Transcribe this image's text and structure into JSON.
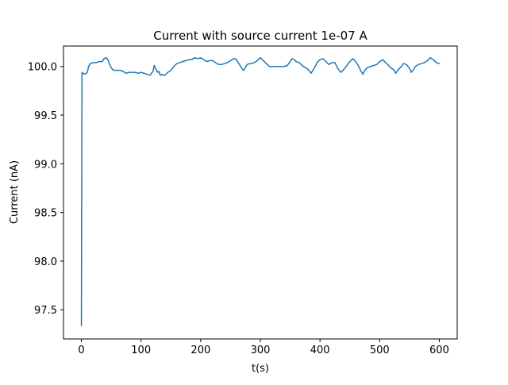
{
  "chart_data": {
    "type": "line",
    "title": "Current with source current 1e-07 A",
    "xlabel": "t(s)",
    "ylabel": "Current (nA)",
    "xlim": [
      -30,
      630
    ],
    "ylim": [
      97.2,
      100.21
    ],
    "xticks": [
      0,
      100,
      200,
      300,
      400,
      500,
      600
    ],
    "xtick_labels": [
      "0",
      "100",
      "200",
      "300",
      "400",
      "500",
      "600"
    ],
    "yticks": [
      97.5,
      98.0,
      98.5,
      99.0,
      99.5,
      100.0
    ],
    "ytick_labels": [
      "97.5",
      "98.0",
      "98.5",
      "99.0",
      "99.5",
      "100.0"
    ],
    "grid": false,
    "legend": "none",
    "series": [
      {
        "color": "#1f77b4",
        "x": [
          0,
          1,
          1.5,
          3,
          6,
          10,
          12,
          15,
          20,
          25,
          30,
          35,
          38,
          42,
          45,
          48,
          52,
          55,
          60,
          65,
          70,
          75,
          80,
          85,
          90,
          95,
          100,
          105,
          110,
          115,
          120,
          122,
          125,
          128,
          130,
          132,
          135,
          138,
          140,
          145,
          150,
          155,
          160,
          165,
          170,
          175,
          180,
          185,
          190,
          195,
          200,
          205,
          210,
          215,
          220,
          225,
          230,
          235,
          240,
          245,
          250,
          255,
          258,
          262,
          265,
          270,
          272,
          275,
          278,
          282,
          285,
          290,
          295,
          300,
          305,
          310,
          315,
          320,
          325,
          330,
          335,
          340,
          345,
          350,
          353,
          357,
          360,
          365,
          370,
          375,
          380,
          385,
          388,
          392,
          395,
          400,
          405,
          410,
          415,
          420,
          425,
          428,
          432,
          435,
          440,
          445,
          450,
          455,
          460,
          465,
          468,
          472,
          475,
          480,
          485,
          490,
          495,
          500,
          505,
          510,
          515,
          520,
          523,
          527,
          530,
          535,
          540,
          545,
          550,
          553,
          557,
          560,
          565,
          570,
          575,
          580,
          585,
          590,
          595,
          600
        ],
        "y": [
          97.34,
          99.94,
          99.93,
          99.93,
          99.92,
          99.94,
          100.0,
          100.03,
          100.04,
          100.04,
          100.05,
          100.05,
          100.08,
          100.09,
          100.06,
          100.01,
          99.97,
          99.96,
          99.96,
          99.96,
          99.95,
          99.93,
          99.94,
          99.94,
          99.94,
          99.93,
          99.94,
          99.93,
          99.92,
          99.91,
          99.95,
          100.01,
          99.97,
          99.94,
          99.95,
          99.91,
          99.92,
          99.91,
          99.91,
          99.94,
          99.96,
          100.0,
          100.03,
          100.04,
          100.05,
          100.06,
          100.07,
          100.07,
          100.09,
          100.08,
          100.09,
          100.07,
          100.05,
          100.06,
          100.06,
          100.04,
          100.02,
          100.02,
          100.03,
          100.04,
          100.06,
          100.08,
          100.08,
          100.05,
          100.02,
          99.97,
          99.96,
          99.99,
          100.02,
          100.03,
          100.03,
          100.04,
          100.06,
          100.09,
          100.06,
          100.03,
          100.0,
          100.0,
          100.0,
          100.0,
          100.0,
          100.0,
          100.01,
          100.05,
          100.08,
          100.07,
          100.05,
          100.04,
          100.01,
          99.99,
          99.97,
          99.93,
          99.96,
          100.0,
          100.04,
          100.07,
          100.08,
          100.05,
          100.02,
          100.04,
          100.04,
          100.0,
          99.96,
          99.94,
          99.97,
          100.01,
          100.05,
          100.08,
          100.05,
          100.0,
          99.96,
          99.92,
          99.96,
          99.99,
          100.0,
          100.01,
          100.02,
          100.05,
          100.07,
          100.04,
          100.01,
          99.98,
          99.97,
          99.93,
          99.96,
          99.99,
          100.03,
          100.02,
          99.98,
          99.94,
          99.97,
          100.0,
          100.02,
          100.03,
          100.04,
          100.06,
          100.09,
          100.07,
          100.04,
          100.03
        ]
      }
    ]
  }
}
